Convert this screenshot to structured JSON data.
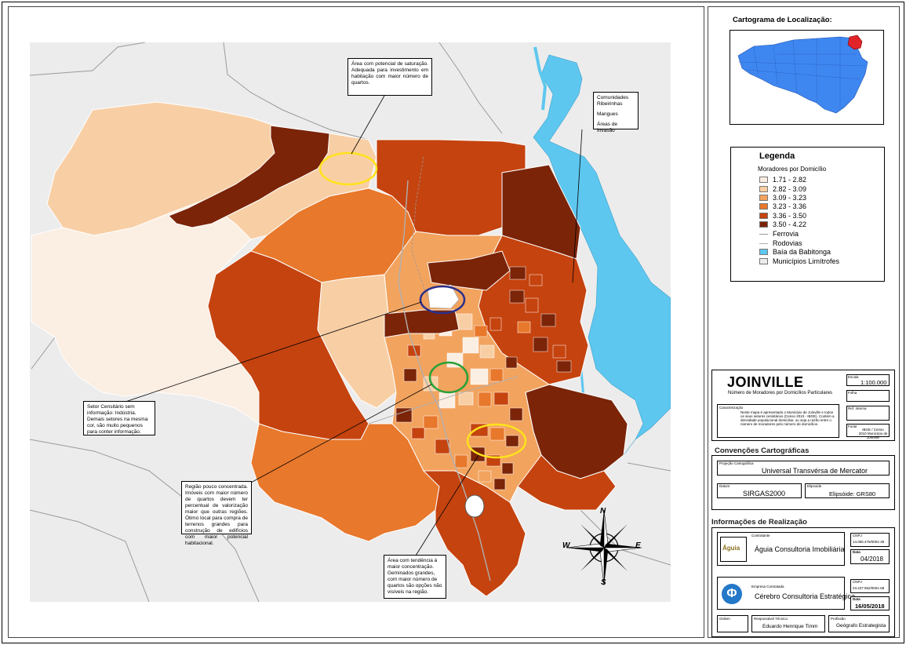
{
  "locator": {
    "title": "Cartograma de Localização:"
  },
  "legend": {
    "title": "Legenda",
    "subtitle": "Moradores por Domicílio",
    "classes": [
      {
        "label": "1.71 - 2.82",
        "color": "#fbeee2"
      },
      {
        "label": "2.82 - 3.09",
        "color": "#f8cfa5"
      },
      {
        "label": "3.09 - 3.23",
        "color": "#f2a35e"
      },
      {
        "label": "3.23 - 3.36",
        "color": "#e8782c"
      },
      {
        "label": "3.36 - 3.50",
        "color": "#c5430f"
      },
      {
        "label": "3.50 - 4.22",
        "color": "#7b2408"
      }
    ],
    "lines": [
      {
        "label": "Ferrovia",
        "color": "#999999"
      },
      {
        "label": "Rodovias",
        "color": "#b0b0b0"
      }
    ],
    "areas": [
      {
        "label": "Baía da Babitonga",
        "color": "#5ec7ef"
      },
      {
        "label": "Municípios Limítrofes",
        "color": "#ededed"
      }
    ]
  },
  "callouts": {
    "top": "Área com potencial de saturação. Adequada para investimento em habitação com maior número de quartos.",
    "right_1": "Comunidades Ribeirinhas",
    "right_2": "Mangues",
    "right_3": "Áreas de Invasão",
    "left": "Setor Censitário sem informação: Indústria. Demais setores na mesma cor, são muito pequenos para conter informação.",
    "middle": "Região pouco concentrada. Imóveis com maior número de quartos devem ter percentual de valorização maior que outras regiões. Ótimo local para compra de terrenos grandes para construção de edifícios com maior potencial habitacional.",
    "bottom": "Área com tendência à maior concentração. Geminados grandes, com maior número de quartos são opções não visíveis na região."
  },
  "compass": {
    "n": "N",
    "s": "S",
    "e": "E",
    "w": "W"
  },
  "title_block": {
    "city": "JOINVILLE",
    "subtitle": "Número de Moradores por Domicílios Particulares",
    "scale_label": "Escala",
    "scale": "1:100.000",
    "folha_label": "Folha",
    "caracterizacao_label": "Caracterização",
    "caracterizacao": "Neste mapa é apresentado o Município de Joinville e todos os seus setores censitários (Censo 2010 - IBGE). Contém a densidade populacional domiciliar, ou seja a razão entre o número de moradores pelo número de domicílios.",
    "ref_label": "Ref. Interna",
    "fonte_label": "Fonte",
    "fonte": "IBGE / Censo 2010 Município de Joinville"
  },
  "convencoes": {
    "header": "Convenções Cartográficas",
    "projecao_label": "Projeção Cartográfica",
    "projecao": "Universal Transvérsa de Mercator",
    "datum_label": "Datum",
    "datum": "SIRGAS2000",
    "elipsoide_label": "Elipsoide",
    "elipsoide": "Elipsóide: GRS80"
  },
  "realizacao": {
    "header": "Informações de Realização",
    "contratante_label": "Contratante",
    "contratante": "Águia Consultoria Imobiliária",
    "logo1": "Águia",
    "cnpj1_label": "CNPJ",
    "cnpj1": "14.065.476/0001-35",
    "data1_label": "Data",
    "data1": "04/2018",
    "empresa_label": "Empresa Contratada",
    "empresa": "Cérebro Consultoria Estratégica",
    "logo2": "Φ",
    "cnpj2_label": "CNPJ",
    "cnpj2": "23.437.952/0001-68",
    "data2_label": "Data",
    "data2": "16/05/2018",
    "ordem_label": "Ordem",
    "responsavel_label": "Responsável Técnico",
    "responsavel": "Eduardo Henrique Timm",
    "profissao_label": "Profissão",
    "profissao": "Geógrafo Estrategista"
  }
}
